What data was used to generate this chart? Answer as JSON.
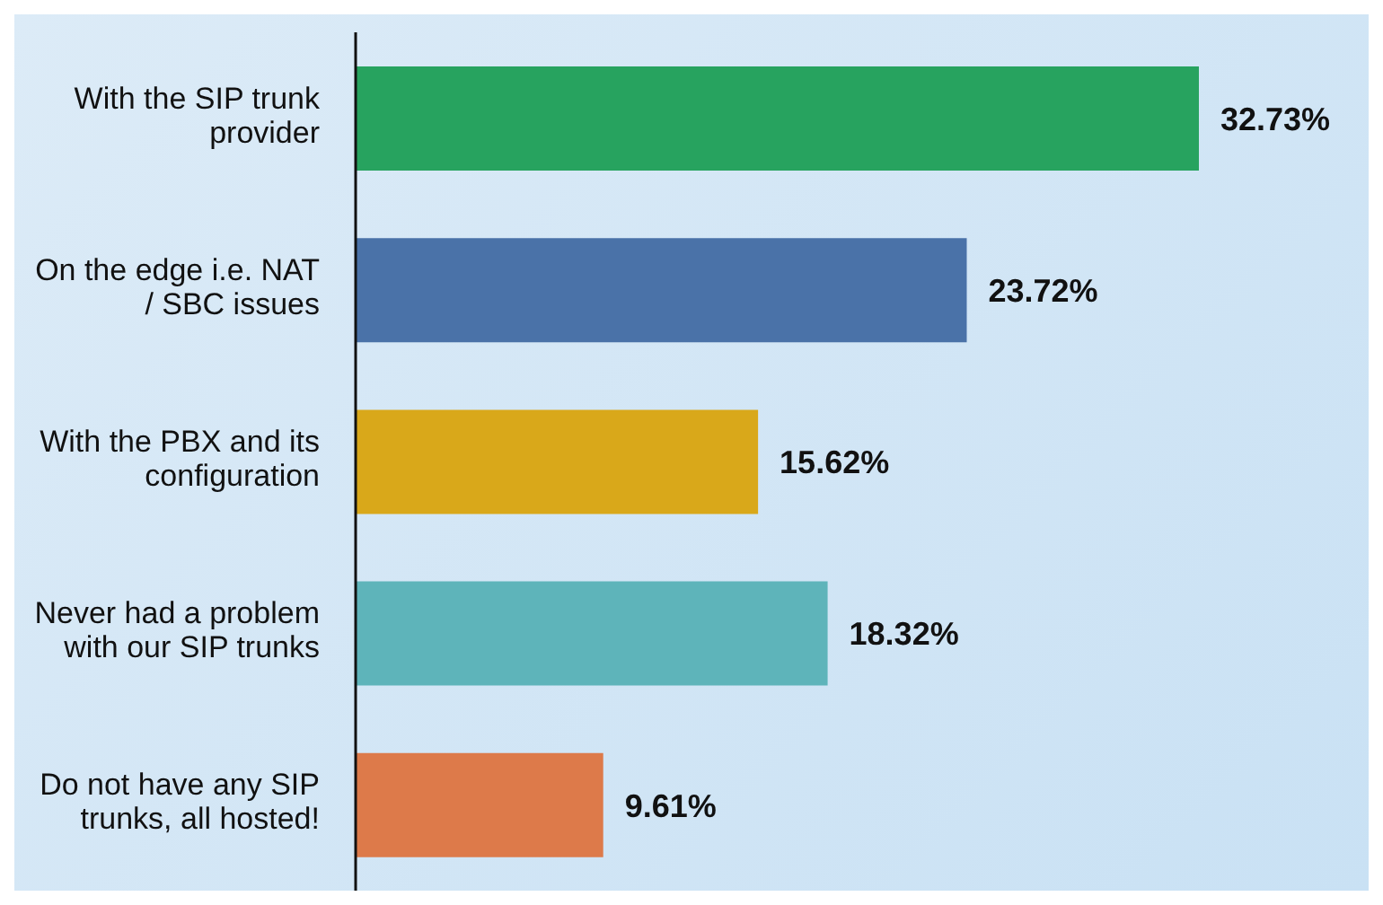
{
  "chart_data": {
    "type": "bar",
    "orientation": "horizontal",
    "categories": [
      "With the SIP trunk provider",
      "On the edge i.e. NAT / SBC issues",
      "With the PBX and its configuration",
      "Never had a problem with our SIP trunks",
      "Do not have any SIP trunks, all hosted!"
    ],
    "values": [
      32.73,
      23.72,
      15.62,
      18.32,
      9.61
    ],
    "colors": [
      "#27a35f",
      "#4a72a8",
      "#d9a81a",
      "#5eb4ba",
      "#dd7a4a"
    ],
    "value_labels": [
      "32.73%",
      "23.72%",
      "15.62%",
      "18.32%",
      "9.61%"
    ]
  }
}
